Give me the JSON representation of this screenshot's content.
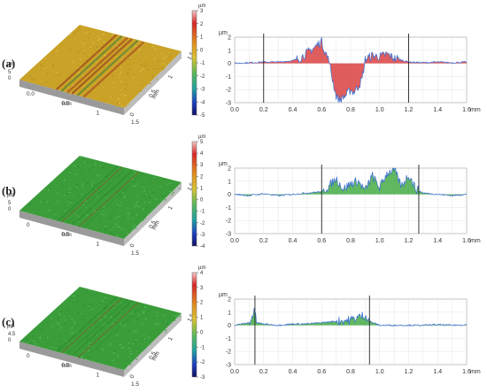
{
  "rows": [
    {
      "label": "(a)",
      "surface": {
        "axis_unit": "mm",
        "z_unit": "µm",
        "x_ticks": [
          "0.0",
          "0.5",
          "1",
          "1.5"
        ],
        "y_ticks": [
          "0",
          "0.5",
          "1",
          "1.5"
        ],
        "z_ticks": [
          "0",
          "5"
        ],
        "colorbar": {
          "unit": "µm",
          "ticks": [
            "3",
            "2",
            "1",
            "0",
            "-1",
            "-2",
            "-3",
            "-4",
            "-5"
          ],
          "min": -5,
          "max": 3
        }
      },
      "profile": {
        "ylabel": "µm",
        "xunit": "mm",
        "xlim": [
          0,
          1.6
        ],
        "ylim": [
          -3,
          2
        ],
        "xticks": [
          "0.0",
          "0.2",
          "0.4",
          "0.6",
          "0.8",
          "1.0",
          "1.2",
          "1.4",
          "1.6"
        ],
        "yticks": [
          "2",
          "1",
          "0",
          "-1",
          "-2",
          "-3"
        ],
        "markers": [
          0.2,
          1.2
        ],
        "fill": "#d62728"
      }
    },
    {
      "label": "(b)",
      "surface": {
        "axis_unit": "mm",
        "z_unit": "µm",
        "x_ticks": [
          "0",
          "0.5",
          "1",
          "1.5"
        ],
        "y_ticks": [
          "0",
          "0.5",
          "1",
          "1.5"
        ],
        "z_ticks": [
          "0",
          "5"
        ],
        "colorbar": {
          "unit": "µm",
          "ticks": [
            "5",
            "4",
            "3",
            "2",
            "1",
            "0",
            "-1",
            "-2",
            "-3",
            "-4"
          ],
          "min": -4,
          "max": 5
        }
      },
      "profile": {
        "ylabel": "µm",
        "xunit": "mm",
        "xlim": [
          0,
          1.6
        ],
        "ylim": [
          -3,
          2
        ],
        "xticks": [
          "0.0",
          "0.2",
          "0.4",
          "0.6",
          "0.8",
          "1.0",
          "1.2",
          "1.4",
          "1.6"
        ],
        "yticks": [
          "2",
          "1",
          "0",
          "-1",
          "-2",
          "-3"
        ],
        "markers": [
          0.6,
          1.27
        ],
        "fill": "#2ca02c"
      }
    },
    {
      "label": "(c)",
      "surface": {
        "axis_unit": "mm",
        "z_unit": "µm",
        "x_ticks": [
          "0",
          "0.5",
          "1",
          "1.5"
        ],
        "y_ticks": [
          "0",
          "0.5",
          "1",
          "1.5"
        ],
        "z_ticks": [
          "0",
          "4.5"
        ],
        "colorbar": {
          "unit": "µm",
          "ticks": [
            "4",
            "3",
            "2",
            "1",
            "0",
            "-1",
            "-2",
            "-3"
          ],
          "min": -3,
          "max": 4
        }
      },
      "profile": {
        "ylabel": "µm",
        "xunit": "mm",
        "xlim": [
          0,
          1.6
        ],
        "ylim": [
          -3,
          2
        ],
        "xticks": [
          "0.0",
          "0.2",
          "0.4",
          "0.6",
          "0.8",
          "1.0",
          "1.2",
          "1.4",
          "1.6"
        ],
        "yticks": [
          "2",
          "1",
          "0",
          "-1",
          "-2",
          "-3"
        ],
        "markers": [
          0.14,
          0.93
        ],
        "fill": "#2ca02c"
      }
    }
  ],
  "chart_data": [
    {
      "type": "line",
      "panel": "(a)",
      "xlabel": "mm",
      "ylabel": "µm",
      "xlim": [
        0,
        1.6
      ],
      "ylim": [
        -3,
        2
      ],
      "grid": true,
      "series": [
        {
          "x": [
            0.0,
            0.1,
            0.2,
            0.3,
            0.4,
            0.45,
            0.5,
            0.55,
            0.6,
            0.62,
            0.65,
            0.68,
            0.7,
            0.72,
            0.75,
            0.78,
            0.8,
            0.82,
            0.85,
            0.88,
            0.9,
            0.95,
            1.0,
            1.05,
            1.1,
            1.2,
            1.3,
            1.4,
            1.5,
            1.6
          ],
          "y": [
            0.0,
            0.05,
            0.1,
            0.1,
            0.2,
            0.4,
            0.8,
            1.2,
            1.7,
            1.0,
            0.2,
            -1.5,
            -2.5,
            -2.8,
            -2.6,
            -2.3,
            -2.0,
            -2.2,
            -1.8,
            -1.2,
            0.3,
            0.6,
            0.5,
            0.7,
            0.4,
            0.1,
            0.05,
            0.1,
            0.05,
            0.1
          ]
        }
      ],
      "markers_x": [
        0.2,
        1.2
      ]
    },
    {
      "type": "line",
      "panel": "(b)",
      "xlabel": "mm",
      "ylabel": "µm",
      "xlim": [
        0,
        1.6
      ],
      "ylim": [
        -3,
        2
      ],
      "grid": true,
      "series": [
        {
          "x": [
            0.0,
            0.1,
            0.2,
            0.3,
            0.4,
            0.5,
            0.6,
            0.65,
            0.7,
            0.75,
            0.8,
            0.85,
            0.9,
            0.95,
            1.0,
            1.05,
            1.1,
            1.15,
            1.2,
            1.25,
            1.3,
            1.4,
            1.5,
            1.6
          ],
          "y": [
            0.0,
            -0.1,
            0.05,
            -0.1,
            0.0,
            0.1,
            0.2,
            0.6,
            1.2,
            0.4,
            0.8,
            1.0,
            0.3,
            1.4,
            0.5,
            1.6,
            1.9,
            0.6,
            1.5,
            0.4,
            0.1,
            0.0,
            -0.1,
            0.0
          ]
        }
      ],
      "markers_x": [
        0.6,
        1.27
      ]
    },
    {
      "type": "line",
      "panel": "(c)",
      "xlabel": "mm",
      "ylabel": "µm",
      "xlim": [
        0,
        1.6
      ],
      "ylim": [
        -3,
        2
      ],
      "grid": true,
      "series": [
        {
          "x": [
            0.0,
            0.05,
            0.1,
            0.14,
            0.15,
            0.2,
            0.3,
            0.4,
            0.5,
            0.6,
            0.7,
            0.8,
            0.85,
            0.9,
            0.93,
            1.0,
            1.1,
            1.2,
            1.3,
            1.4,
            1.5,
            1.6
          ],
          "y": [
            0.0,
            0.1,
            0.2,
            1.1,
            0.2,
            0.1,
            0.0,
            0.1,
            0.1,
            0.2,
            0.3,
            0.4,
            0.6,
            0.8,
            0.3,
            0.0,
            0.0,
            0.0,
            0.0,
            0.05,
            0.0,
            0.05
          ]
        }
      ],
      "markers_x": [
        0.14,
        0.93
      ]
    }
  ]
}
